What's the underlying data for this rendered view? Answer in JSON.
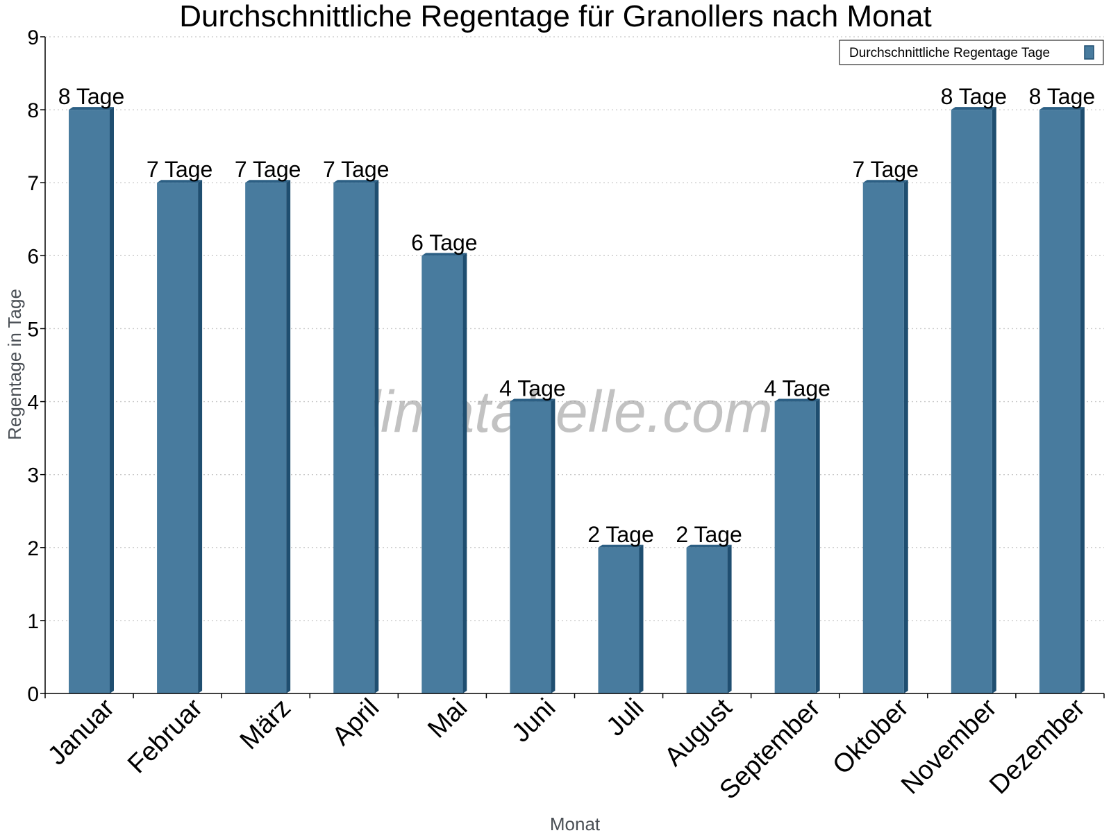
{
  "watermark": "klimatabelle.com",
  "colors": {
    "bar_front": "#487b9e",
    "bar_side": "#1f4e70",
    "bar_top": "#2c5f84",
    "grid": "#c8c8c8",
    "axis": "#000000"
  },
  "chart_data": {
    "type": "bar",
    "title": "Durchschnittliche Regentage für Granollers nach Monat",
    "xlabel": "Monat",
    "ylabel": "Regentage in Tage",
    "ylim": [
      0,
      9
    ],
    "yticks": [
      "0",
      "1",
      "2",
      "3",
      "4",
      "5",
      "6",
      "7",
      "8",
      "9"
    ],
    "grid": "horizontal-dotted",
    "legend_position": "top-right",
    "categories": [
      "Januar",
      "Februar",
      "März",
      "April",
      "Mai",
      "Juni",
      "Juli",
      "August",
      "September",
      "Oktober",
      "November",
      "Dezember"
    ],
    "series": [
      {
        "name": "Durchschnittliche Regentage Tage",
        "values": [
          8,
          7,
          7,
          7,
          6,
          4,
          2,
          2,
          4,
          7,
          8,
          8
        ],
        "labels": [
          "8 Tage",
          "7 Tage",
          "7 Tage",
          "7 Tage",
          "6 Tage",
          "4 Tage",
          "2 Tage",
          "2 Tage",
          "4 Tage",
          "7 Tage",
          "8 Tage",
          "8 Tage"
        ]
      }
    ]
  }
}
